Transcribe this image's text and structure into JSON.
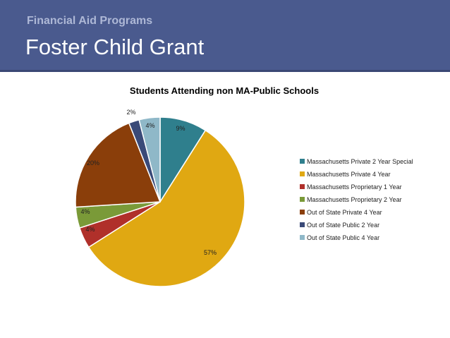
{
  "header": {
    "subtitle": "Financial Aid Programs",
    "title": "Foster Child Grant"
  },
  "colors": {
    "header_bg": "#4a5a8e",
    "header_subtitle": "#aeb8d6",
    "header_title": "#ffffff"
  },
  "chart_data": {
    "type": "pie",
    "title": "Students Attending non MA-Public Schools",
    "legend_position": "right",
    "series": [
      {
        "name": "Massachusetts Private 2 Year Special",
        "value": 9,
        "label": "9%",
        "color": "#2f7f8d"
      },
      {
        "name": "Massachusetts Private 4 Year",
        "value": 57,
        "label": "57%",
        "color": "#e0a812"
      },
      {
        "name": "Massachusetts Proprietary 1 Year",
        "value": 4,
        "label": "4%",
        "color": "#b0302a"
      },
      {
        "name": "Massachusetts Proprietary 2 Year",
        "value": 4,
        "label": "4%",
        "color": "#7a9a38"
      },
      {
        "name": "Out of State Private 4 Year",
        "value": 20,
        "label": "20%",
        "color": "#8a3e0a"
      },
      {
        "name": "Out of State Public 2 Year",
        "value": 2,
        "label": "2%",
        "color": "#3a4a78"
      },
      {
        "name": "Out of State Public 4 Year",
        "value": 4,
        "label": "4%",
        "color": "#8fb8c8"
      }
    ]
  }
}
